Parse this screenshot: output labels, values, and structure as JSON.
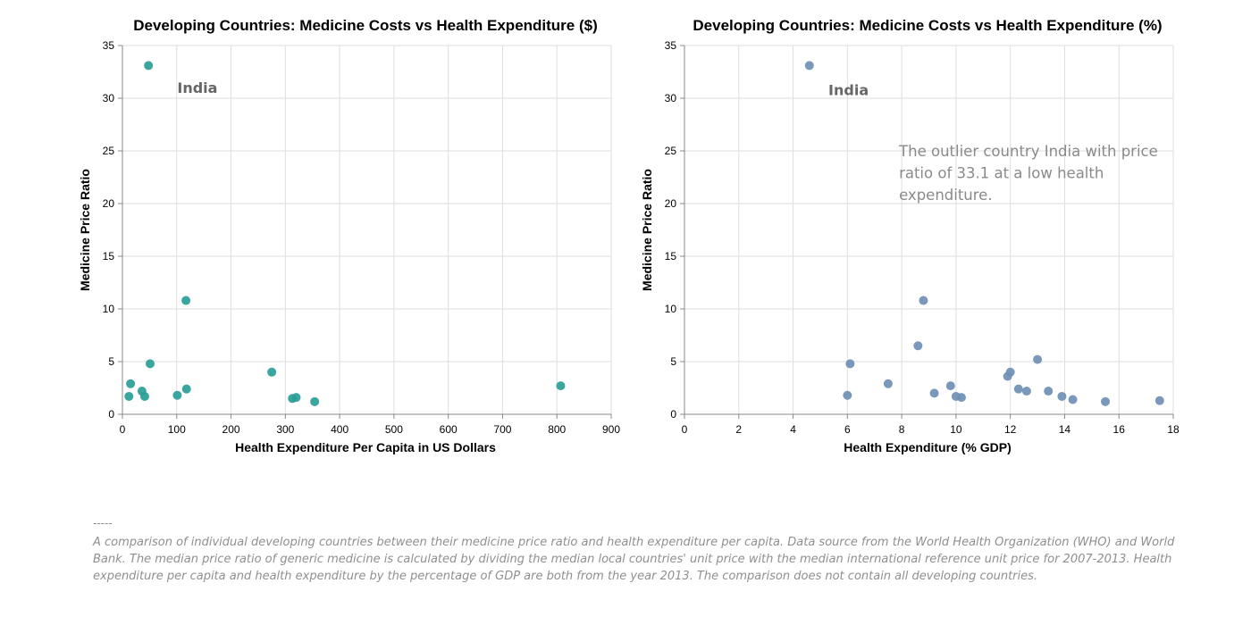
{
  "chart_data": [
    {
      "type": "scatter",
      "title": "Developing Countries: Medicine Costs vs Health Expenditure ($)",
      "xlabel": "Health Expenditure Per Capita in US Dollars",
      "ylabel": "Medicine Price Ratio",
      "xlim": [
        0,
        900
      ],
      "ylim": [
        0,
        35
      ],
      "xticks": [
        0,
        100,
        200,
        300,
        400,
        500,
        600,
        700,
        800,
        900
      ],
      "yticks": [
        0,
        5,
        10,
        15,
        20,
        25,
        30,
        35
      ],
      "grid": true,
      "color": "#2a9d97",
      "series": [
        {
          "name": "Countries",
          "points": [
            {
              "x": 48,
              "y": 33.1
            },
            {
              "x": 117,
              "y": 10.8
            },
            {
              "x": 51,
              "y": 4.8
            },
            {
              "x": 15,
              "y": 2.9
            },
            {
              "x": 12,
              "y": 1.7
            },
            {
              "x": 36,
              "y": 2.2
            },
            {
              "x": 41,
              "y": 1.7
            },
            {
              "x": 101,
              "y": 1.8
            },
            {
              "x": 118,
              "y": 2.4
            },
            {
              "x": 275,
              "y": 4.0
            },
            {
              "x": 313,
              "y": 1.5
            },
            {
              "x": 320,
              "y": 1.6
            },
            {
              "x": 354,
              "y": 1.2
            },
            {
              "x": 807,
              "y": 2.7
            }
          ]
        }
      ],
      "annotations": [
        {
          "text": "India",
          "x": 101,
          "y": 30.5
        }
      ]
    },
    {
      "type": "scatter",
      "title": "Developing Countries: Medicine Costs vs Health Expenditure (%)",
      "xlabel": "Health Expenditure (% GDP)",
      "ylabel": "Medicine Price Ratio",
      "xlim": [
        0,
        18
      ],
      "ylim": [
        0,
        35
      ],
      "xticks": [
        0,
        2,
        4,
        6,
        8,
        10,
        12,
        14,
        16,
        18
      ],
      "yticks": [
        0,
        5,
        10,
        15,
        20,
        25,
        30,
        35
      ],
      "grid": true,
      "color": "#6f8fb4",
      "series": [
        {
          "name": "Countries",
          "points": [
            {
              "x": 4.6,
              "y": 33.1
            },
            {
              "x": 6.0,
              "y": 1.8
            },
            {
              "x": 6.1,
              "y": 4.8
            },
            {
              "x": 7.5,
              "y": 2.9
            },
            {
              "x": 8.6,
              "y": 6.5
            },
            {
              "x": 8.8,
              "y": 10.8
            },
            {
              "x": 9.2,
              "y": 2.0
            },
            {
              "x": 9.8,
              "y": 2.7
            },
            {
              "x": 10.0,
              "y": 1.7
            },
            {
              "x": 10.2,
              "y": 1.6
            },
            {
              "x": 11.9,
              "y": 3.6
            },
            {
              "x": 12.0,
              "y": 4.0
            },
            {
              "x": 12.3,
              "y": 2.4
            },
            {
              "x": 12.6,
              "y": 2.2
            },
            {
              "x": 13.0,
              "y": 5.2
            },
            {
              "x": 13.4,
              "y": 2.2
            },
            {
              "x": 13.9,
              "y": 1.7
            },
            {
              "x": 14.3,
              "y": 1.4
            },
            {
              "x": 15.5,
              "y": 1.2
            },
            {
              "x": 17.5,
              "y": 1.3
            }
          ]
        }
      ],
      "annotations": [
        {
          "text": "India",
          "x": 5.3,
          "y": 30.3
        },
        {
          "text_lines": [
            "The outlier country India with price",
            "ratio of 33.1 at a low health",
            "expenditure."
          ],
          "x": 7.9,
          "y": 24.5
        }
      ]
    }
  ],
  "footnote": {
    "separator": "-----",
    "text": "A comparison of individual developing countries between their medicine price ratio and health expenditure per capita. Data source from the World Health Organization (WHO) and World Bank. The median price ratio of generic medicine is calculated by dividing the median local countries' unit price with the median international reference unit price for 2007-2013. Health expenditure per capita and health expenditure by the percentage of GDP are both from the year 2013. The comparison does not contain all developing countries."
  }
}
